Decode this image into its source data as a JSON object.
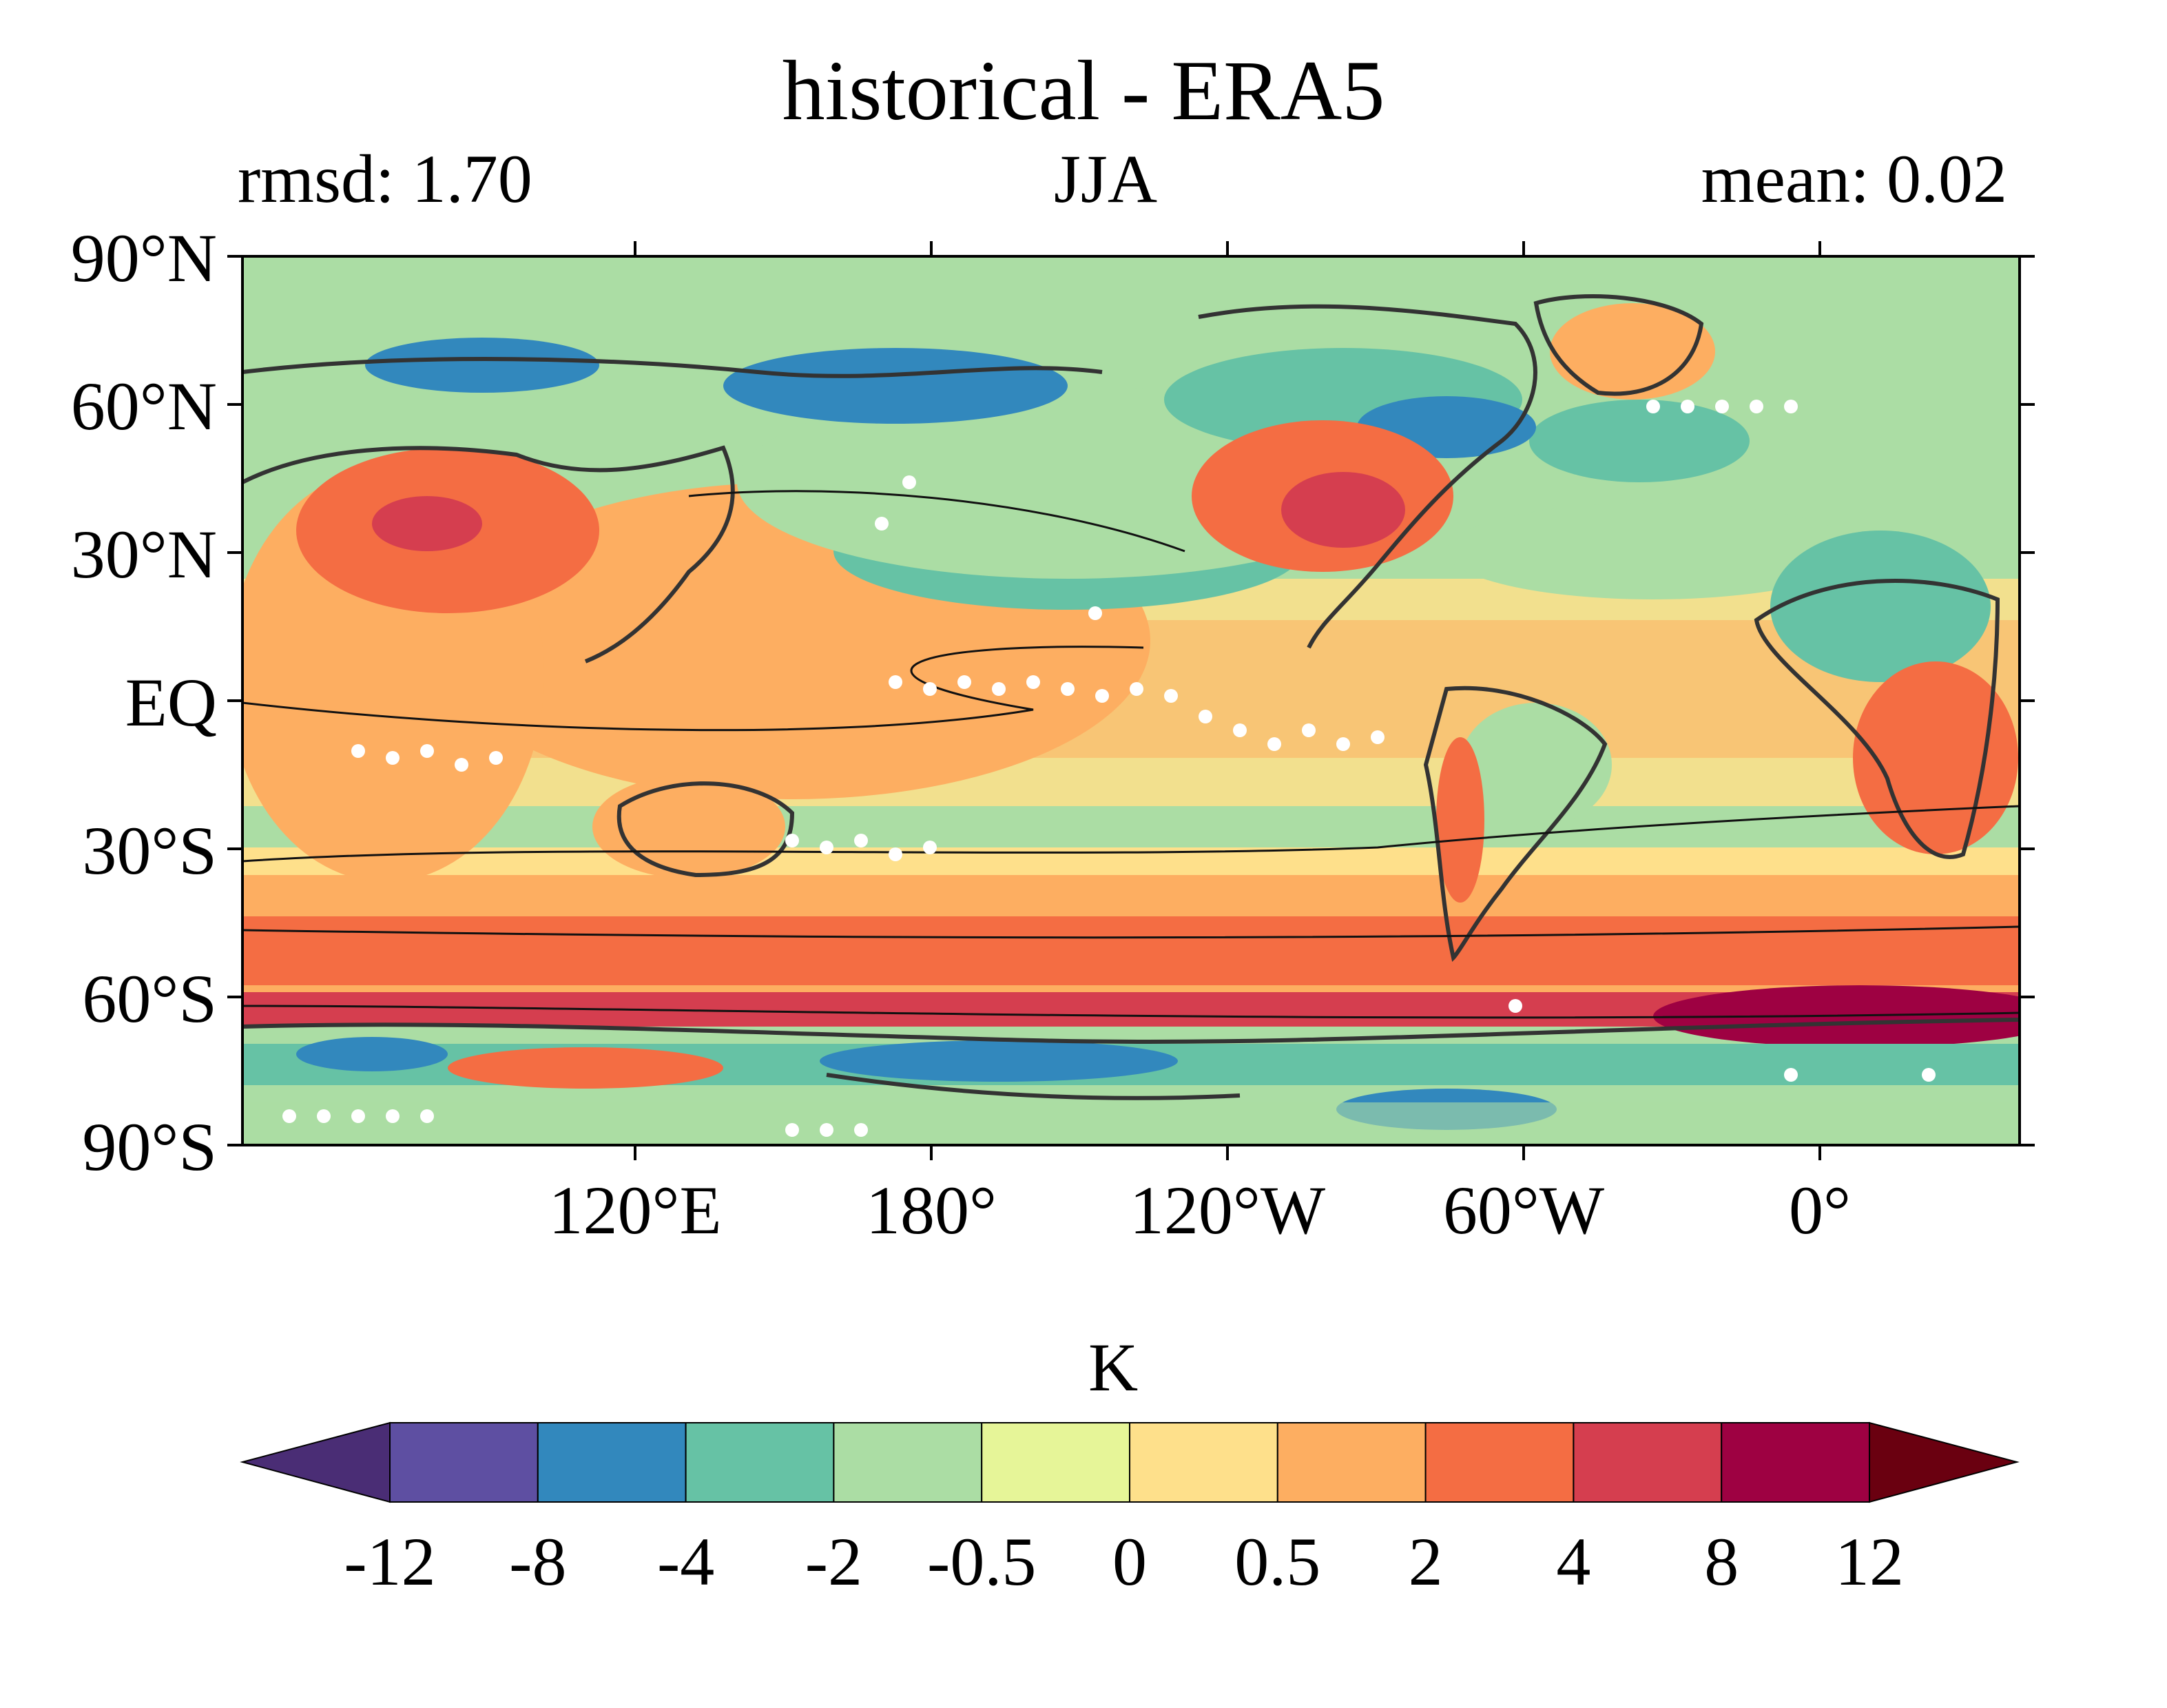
{
  "title": "historical - ERA5",
  "left_stat": "rmsd: 1.70",
  "center_label": "JJA",
  "right_stat": "mean: 0.02",
  "map": {
    "type": "heatmap",
    "projection": "PlateCarree, central longitude 180",
    "lat_range": [
      -90,
      90
    ],
    "lon_range_label": "global",
    "lat_ticks": [
      "90°N",
      "60°N",
      "30°N",
      "EQ",
      "30°S",
      "60°S",
      "90°S"
    ],
    "lon_ticks": [
      "120°E",
      "180°",
      "120°W",
      "60°W",
      "0°"
    ],
    "stippling": "white dots",
    "coastlines": true
  },
  "colorbar": {
    "unit": "K",
    "levels": [
      "-12",
      "-8",
      "-4",
      "-2",
      "-0.5",
      "0",
      "0.5",
      "2",
      "4",
      "8",
      "12"
    ],
    "colors": [
      "#5e4fa2",
      "#3288bd",
      "#66c2a5",
      "#abdda4",
      "#e6f598",
      "#fee08b",
      "#fdae61",
      "#f46d43",
      "#d53e4f",
      "#9e0142"
    ],
    "extend_low_color": "#4a2d75",
    "extend_high_color": "#6a0010"
  }
}
